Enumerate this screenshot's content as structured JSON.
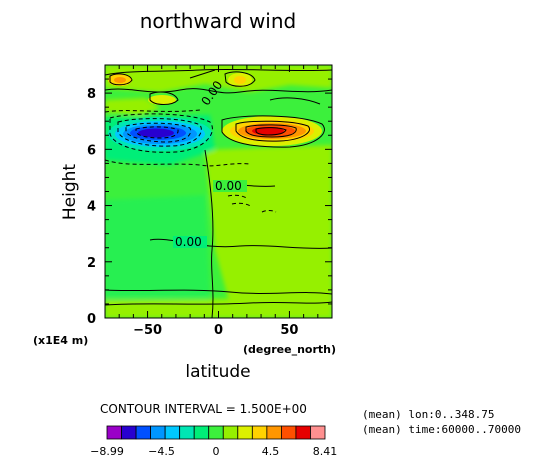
{
  "chart_data": {
    "type": "heatmap",
    "title": "northward wind",
    "xlabel": "latitude",
    "xunit": "(degree_north)",
    "ylabel": "Height",
    "yunit": "(x1E4 m)",
    "xlim": [
      -80,
      80
    ],
    "ylim": [
      0,
      9
    ],
    "xticks": [
      -50,
      0,
      50
    ],
    "yticks": [
      0,
      2,
      4,
      6,
      8
    ],
    "xtick_labels": [
      "-50",
      "0",
      "50"
    ],
    "ytick_labels": [
      "0",
      "2",
      "4",
      "6",
      "8"
    ],
    "contour_labels": [
      "0.00",
      "0.00",
      "0.00"
    ],
    "contour_interval": "CONTOUR INTERVAL = 1.500E+00",
    "colorbar": {
      "min_label": "-8.99",
      "max_label": "8.41",
      "tick_labels": [
        "-8.99",
        "-4.5",
        "0",
        "4.5",
        "8.41"
      ],
      "colors": [
        "#9a00c8",
        "#2800d0",
        "#0050ff",
        "#0096ff",
        "#00c8ff",
        "#00e6b4",
        "#00ee78",
        "#3cf03c",
        "#96f000",
        "#dcf000",
        "#ffd200",
        "#ff9600",
        "#ff5000",
        "#e60000",
        "#ff9090"
      ]
    },
    "notes": [
      "(mean) lon:0..348.75",
      "(mean) time:60000..70000"
    ],
    "features": [
      {
        "type": "minimum",
        "lat": -45,
        "height": 6.4,
        "value": -8.99
      },
      {
        "type": "maximum",
        "lat": 45,
        "height": 6.5,
        "value": 8.41
      }
    ]
  }
}
